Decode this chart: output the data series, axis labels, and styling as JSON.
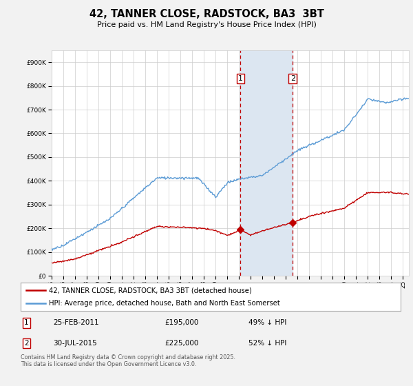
{
  "title": "42, TANNER CLOSE, RADSTOCK, BA3  3BT",
  "subtitle": "Price paid vs. HM Land Registry's House Price Index (HPI)",
  "footer": "Contains HM Land Registry data © Crown copyright and database right 2025.\nThis data is licensed under the Open Government Licence v3.0.",
  "legend_line1": "42, TANNER CLOSE, RADSTOCK, BA3 3BT (detached house)",
  "legend_line2": "HPI: Average price, detached house, Bath and North East Somerset",
  "sale1_date": "25-FEB-2011",
  "sale1_price": "£195,000",
  "sale1_hpi": "49% ↓ HPI",
  "sale1_year": 2011.12,
  "sale1_value": 195000,
  "sale2_date": "30-JUL-2015",
  "sale2_price": "£225,000",
  "sale2_hpi": "52% ↓ HPI",
  "sale2_year": 2015.58,
  "sale2_value": 225000,
  "ylim_max": 950000,
  "ylim_min": 0,
  "hpi_color": "#5b9bd5",
  "sold_color": "#c00000",
  "vline_color": "#c00000",
  "shade_color": "#dce6f1",
  "background_color": "#f2f2f2",
  "plot_bg_color": "#ffffff"
}
